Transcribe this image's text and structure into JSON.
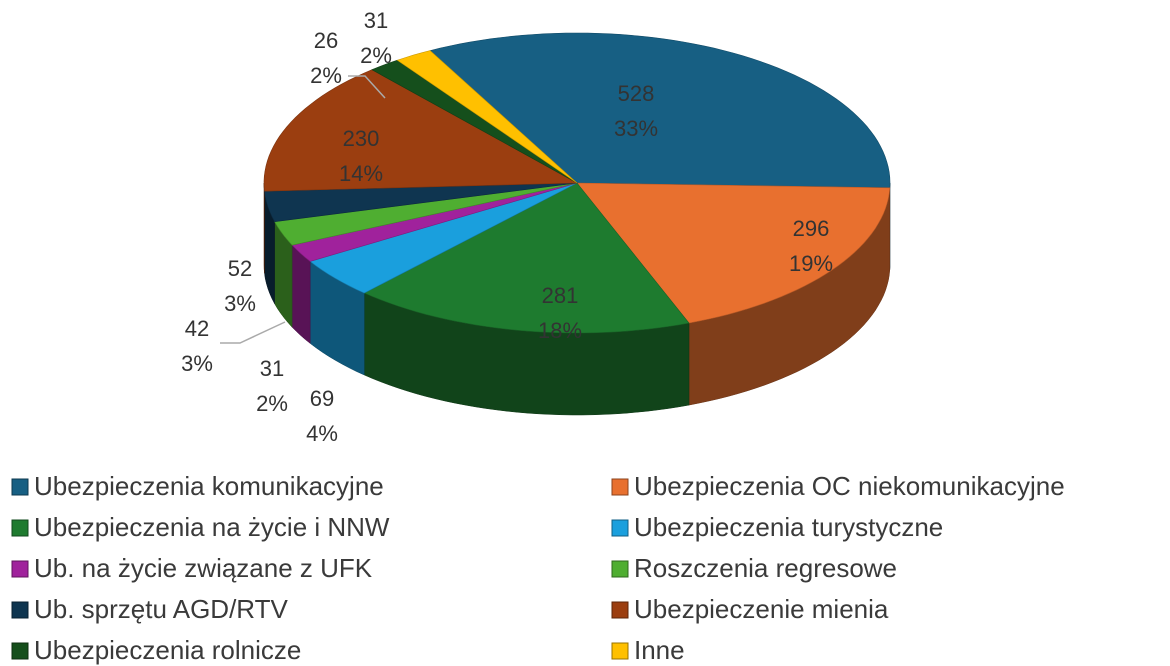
{
  "chart_data": {
    "type": "pie3d",
    "categories": [
      "Ubezpieczenia komunikacyjne",
      "Ubezpieczenia OC niekomunikacyjne",
      "Ubezpieczenia na życie i NNW",
      "Ubezpieczenia turystyczne",
      "Ub. na życie związane z UFK",
      "Roszczenia regresowe",
      "Ub. sprzętu AGD/RTV",
      "Ubezpieczenie mienia",
      "Ubezpieczenia rolnicze",
      "Inne"
    ],
    "values": [
      528,
      296,
      281,
      69,
      31,
      42,
      52,
      230,
      26,
      31
    ],
    "percentages": [
      33,
      19,
      18,
      4,
      2,
      3,
      3,
      14,
      2,
      2
    ],
    "percentage_labels": [
      "33%",
      "19%",
      "18%",
      "4%",
      "2%",
      "3%",
      "3%",
      "14%",
      "2%",
      "2%"
    ],
    "colors": [
      "#175f83",
      "#e8702f",
      "#1e7b2f",
      "#1a9fdd",
      "#a0229c",
      "#4fae31",
      "#0f3550",
      "#9b3e10",
      "#154f1c",
      "#ffc000"
    ],
    "legend": "bottom"
  }
}
